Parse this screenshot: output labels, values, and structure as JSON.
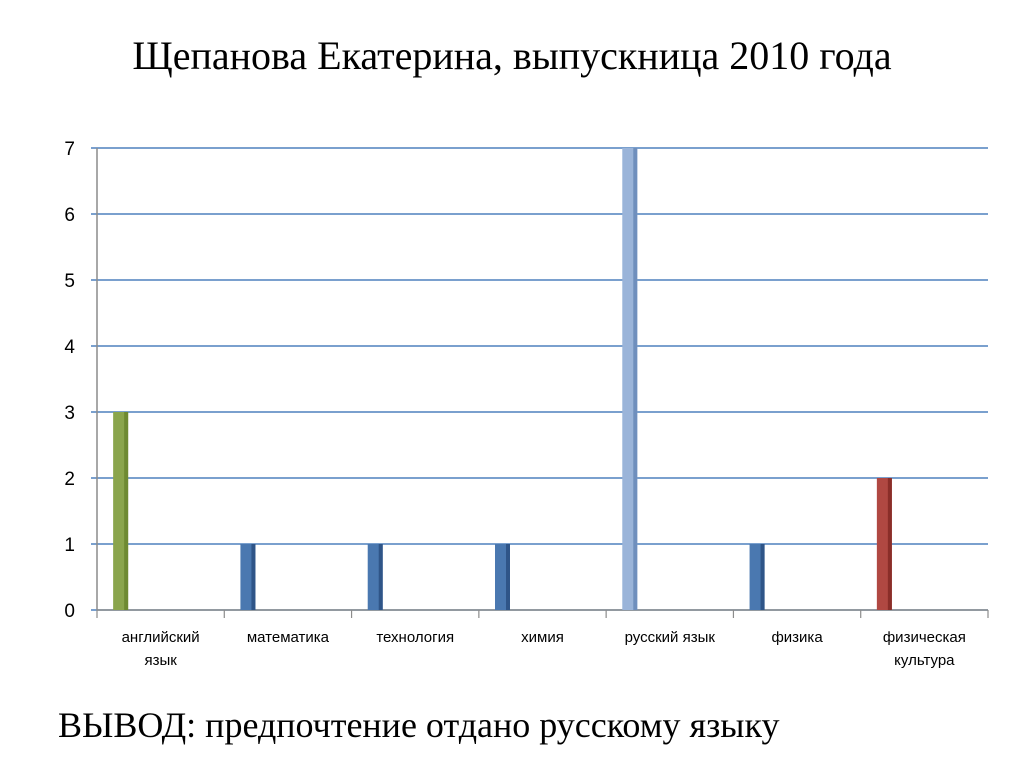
{
  "slide": {
    "title": "Щепанова Екатерина, выпускница 2010 года",
    "conclusion": "ВЫВОД: предпочтение отдано русскому языку"
  },
  "chart_data": {
    "type": "bar",
    "title": "",
    "xlabel": "",
    "ylabel": "",
    "ylim": [
      0,
      7
    ],
    "yticks": [
      0,
      1,
      2,
      3,
      4,
      5,
      6,
      7
    ],
    "grid": true,
    "legend": "none",
    "categories": [
      [
        "английский",
        "язык"
      ],
      [
        "математика"
      ],
      [
        "технология"
      ],
      [
        "химия"
      ],
      [
        "русский язык"
      ],
      [
        "физика"
      ],
      [
        "физическая",
        "культура"
      ]
    ],
    "bars": [
      {
        "category_index": 0,
        "value": 3,
        "color": "#8aa54c",
        "side": "#6e8a32"
      },
      {
        "category_index": 1,
        "value": 1,
        "color": "#4a78b0",
        "side": "#2f5588"
      },
      {
        "category_index": 2,
        "value": 1,
        "color": "#4a78b0",
        "side": "#2f5588"
      },
      {
        "category_index": 3,
        "value": 1,
        "color": "#4a78b0",
        "side": "#2f5588"
      },
      {
        "category_index": 4,
        "value": 7,
        "color": "#9ab4d9",
        "side": "#6f8fbd"
      },
      {
        "category_index": 5,
        "value": 1,
        "color": "#4a78b0",
        "side": "#2f5588"
      },
      {
        "category_index": 6,
        "value": 2,
        "color": "#b04842",
        "side": "#8a2e29"
      }
    ]
  }
}
